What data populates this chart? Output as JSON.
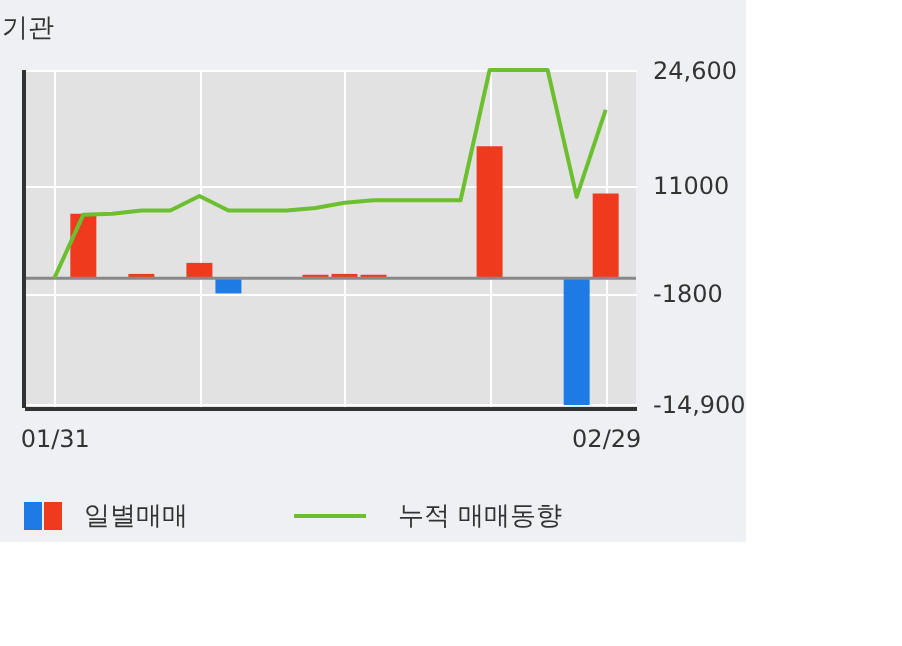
{
  "chart_data": {
    "type": "bar",
    "title": "기관",
    "categories": [
      "01/31",
      null,
      null,
      null,
      null,
      null,
      null,
      null,
      null,
      null,
      null,
      null,
      null,
      null,
      null,
      null,
      null,
      null,
      null,
      "02/29"
    ],
    "series": [
      {
        "name": "일별매매",
        "values": [
          0,
          7600,
          0,
          500,
          0,
          1800,
          -1800,
          0,
          0,
          400,
          500,
          400,
          0,
          0,
          0,
          15600,
          0,
          0,
          -15000,
          10000
        ],
        "colors": [
          "#f03a1e",
          "#f03a1e",
          "#f03a1e",
          "#f03a1e",
          "#f03a1e",
          "#f03a1e",
          "#1e7be6",
          "#f03a1e",
          "#f03a1e",
          "#f03a1e",
          "#f03a1e",
          "#f03a1e",
          "#f03a1e",
          "#f03a1e",
          "#f03a1e",
          "#f03a1e",
          "#f03a1e",
          "#f03a1e",
          "#1e7be6",
          "#f03a1e"
        ]
      },
      {
        "name": "누적 매매동향",
        "type": "line",
        "color": "#6cbf2e",
        "values": [
          0,
          7500,
          7600,
          8000,
          8000,
          9700,
          8000,
          8000,
          8000,
          8300,
          8900,
          9200,
          9200,
          9200,
          9200,
          24600,
          24600,
          24600,
          9600,
          19900
        ]
      }
    ],
    "ylim": [
      -15350,
      24600
    ],
    "yticks": [
      {
        "value": 24600,
        "label": "24,600"
      },
      11000,
      -1800,
      {
        "value": -14900,
        "label": "-14,900"
      }
    ],
    "ref_lines": [
      {
        "axis": "y",
        "value": 0,
        "color": "#888888"
      }
    ],
    "grid": true,
    "legend": "bottom"
  }
}
